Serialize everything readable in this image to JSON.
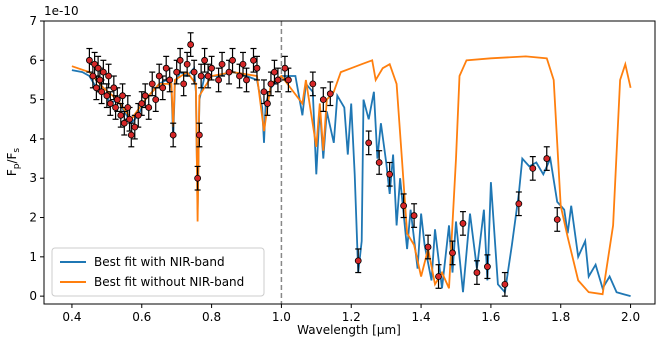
{
  "chart_data": {
    "type": "line",
    "x_label": "Wavelength [μm]",
    "y_label_parts": [
      "F",
      "p",
      "/F",
      "s"
    ],
    "y_offset_label": "1e-10",
    "xlim": [
      0.32,
      2.07
    ],
    "ylim": [
      -0.2,
      7
    ],
    "xticks": [
      0.4,
      0.6,
      0.8,
      {
        "value": 1.0,
        "label": "1.0"
      },
      1.2,
      1.4,
      1.6,
      1.8,
      {
        "value": 2.0,
        "label": "2.0"
      }
    ],
    "yticks": [
      0,
      1,
      2,
      3,
      4,
      5,
      6,
      7
    ],
    "vline_x": 1.0,
    "legend": "lower left",
    "series": [
      {
        "type": "line",
        "name": "Best fit with NIR-band",
        "color": "#1f77b4",
        "x": [
          0.4,
          0.43,
          0.45,
          0.47,
          0.49,
          0.51,
          0.53,
          0.55,
          0.57,
          0.59,
          0.61,
          0.63,
          0.65,
          0.67,
          0.685,
          0.69,
          0.695,
          0.71,
          0.73,
          0.75,
          0.755,
          0.76,
          0.765,
          0.78,
          0.82,
          0.86,
          0.9,
          0.93,
          0.945,
          0.95,
          0.955,
          0.97,
          1.0,
          1.04,
          1.06,
          1.07,
          1.09,
          1.1,
          1.11,
          1.12,
          1.13,
          1.15,
          1.16,
          1.18,
          1.19,
          1.2,
          1.21,
          1.22,
          1.23,
          1.235,
          1.25,
          1.265,
          1.275,
          1.285,
          1.3,
          1.31,
          1.32,
          1.33,
          1.34,
          1.36,
          1.37,
          1.39,
          1.4,
          1.41,
          1.43,
          1.44,
          1.46,
          1.48,
          1.49,
          1.5,
          1.52,
          1.54,
          1.56,
          1.58,
          1.59,
          1.6,
          1.62,
          1.64,
          1.66,
          1.68,
          1.69,
          1.71,
          1.73,
          1.75,
          1.77,
          1.79,
          1.81,
          1.82,
          1.83,
          1.85,
          1.87,
          1.88,
          1.9,
          1.92,
          1.94,
          1.96,
          1.98,
          2.0
        ],
        "values": [
          5.75,
          5.7,
          5.6,
          5.3,
          5.2,
          4.9,
          5.0,
          4.7,
          4.4,
          4.6,
          5.0,
          5.2,
          5.4,
          5.5,
          5.3,
          4.0,
          5.4,
          5.7,
          5.6,
          5.8,
          5.2,
          2.2,
          5.0,
          5.6,
          5.6,
          5.7,
          5.6,
          5.5,
          4.8,
          3.9,
          4.9,
          5.3,
          5.6,
          5.6,
          4.6,
          5.4,
          5.2,
          3.1,
          4.8,
          3.5,
          4.7,
          3.9,
          5.1,
          4.8,
          3.6,
          4.9,
          3.1,
          0.6,
          1.4,
          5.0,
          4.5,
          5.2,
          3.5,
          4.4,
          3.4,
          2.6,
          3.6,
          1.8,
          3.0,
          1.2,
          2.2,
          0.7,
          2.1,
          1.3,
          0.4,
          1.7,
          0.2,
          1.8,
          0.6,
          1.9,
          0.1,
          2.1,
          0.7,
          2.2,
          0.4,
          2.9,
          0.3,
          0.1,
          1.3,
          2.6,
          3.5,
          3.3,
          3.4,
          3.1,
          3.5,
          2.4,
          2.2,
          1.6,
          2.3,
          1.0,
          1.4,
          0.5,
          0.8,
          0.2,
          0.5,
          0.1,
          0.05,
          0.0
        ]
      },
      {
        "type": "line",
        "name": "Best fit without NIR-band",
        "color": "#ff7f0e",
        "x": [
          0.4,
          0.45,
          0.49,
          0.53,
          0.57,
          0.61,
          0.65,
          0.685,
          0.69,
          0.695,
          0.73,
          0.755,
          0.76,
          0.765,
          0.8,
          0.86,
          0.93,
          0.95,
          0.97,
          1.0,
          1.06,
          1.07,
          1.1,
          1.11,
          1.12,
          1.13,
          1.15,
          1.17,
          1.2,
          1.23,
          1.26,
          1.27,
          1.29,
          1.31,
          1.33,
          1.345,
          1.36,
          1.38,
          1.4,
          1.42,
          1.44,
          1.46,
          1.48,
          1.5,
          1.51,
          1.53,
          1.6,
          1.7,
          1.76,
          1.78,
          1.8,
          1.82,
          1.85,
          1.88,
          1.92,
          1.95,
          1.97,
          1.985,
          2.0
        ],
        "values": [
          5.85,
          5.7,
          5.3,
          5.0,
          4.5,
          5.0,
          5.4,
          5.4,
          4.3,
          5.5,
          5.7,
          5.4,
          1.9,
          5.1,
          5.6,
          5.7,
          5.6,
          4.2,
          5.4,
          5.6,
          4.9,
          5.5,
          3.8,
          4.9,
          3.7,
          5.0,
          5.2,
          5.7,
          5.8,
          5.9,
          6.0,
          5.5,
          5.8,
          5.9,
          5.4,
          3.5,
          1.6,
          1.3,
          0.5,
          1.2,
          0.3,
          0.6,
          0.2,
          3.5,
          5.6,
          6.0,
          6.05,
          6.1,
          6.05,
          5.5,
          2.3,
          1.5,
          0.4,
          0.1,
          0.05,
          1.8,
          5.5,
          5.9,
          5.3
        ]
      },
      {
        "type": "scatter",
        "color": "#d62728",
        "x": [
          0.45,
          0.46,
          0.465,
          0.47,
          0.475,
          0.48,
          0.485,
          0.49,
          0.5,
          0.505,
          0.51,
          0.52,
          0.525,
          0.53,
          0.54,
          0.545,
          0.55,
          0.56,
          0.565,
          0.57,
          0.58,
          0.59,
          0.6,
          0.61,
          0.62,
          0.63,
          0.64,
          0.65,
          0.66,
          0.67,
          0.68,
          0.69,
          0.7,
          0.71,
          0.72,
          0.73,
          0.74,
          0.75,
          0.76,
          0.765,
          0.77,
          0.78,
          0.79,
          0.8,
          0.82,
          0.83,
          0.85,
          0.86,
          0.88,
          0.89,
          0.9,
          0.92,
          0.93,
          0.95,
          0.96,
          0.97,
          0.98,
          0.99,
          1.01,
          1.02,
          1.09,
          1.12,
          1.14,
          1.22,
          1.25,
          1.28,
          1.31,
          1.35,
          1.38,
          1.42,
          1.45,
          1.49,
          1.52,
          1.56,
          1.59,
          1.64,
          1.68,
          1.72,
          1.76,
          1.79
        ],
        "values": [
          6.0,
          5.6,
          5.9,
          5.3,
          5.8,
          5.5,
          5.2,
          5.7,
          5.1,
          5.6,
          4.9,
          5.3,
          4.8,
          5.0,
          4.6,
          5.1,
          4.4,
          4.8,
          4.5,
          4.1,
          4.3,
          4.6,
          4.9,
          5.1,
          4.8,
          5.4,
          5.0,
          5.6,
          5.3,
          5.8,
          5.5,
          4.1,
          5.7,
          6.0,
          5.4,
          5.9,
          6.4,
          5.7,
          3.0,
          4.1,
          5.6,
          6.0,
          5.6,
          5.8,
          5.5,
          5.9,
          5.7,
          6.0,
          5.6,
          5.9,
          5.5,
          6.0,
          5.8,
          5.2,
          4.9,
          5.4,
          5.7,
          5.5,
          5.8,
          5.5,
          5.4,
          5.0,
          5.15,
          0.9,
          3.9,
          3.4,
          3.1,
          2.3,
          2.05,
          1.25,
          0.5,
          1.1,
          1.85,
          0.6,
          0.75,
          0.3,
          2.35,
          3.25,
          3.5,
          1.95
        ],
        "errors": [
          0.3,
          0.3,
          0.3,
          0.3,
          0.3,
          0.3,
          0.3,
          0.3,
          0.3,
          0.3,
          0.3,
          0.3,
          0.3,
          0.3,
          0.3,
          0.3,
          0.3,
          0.3,
          0.3,
          0.3,
          0.3,
          0.3,
          0.3,
          0.3,
          0.3,
          0.3,
          0.3,
          0.3,
          0.3,
          0.3,
          0.3,
          0.3,
          0.3,
          0.3,
          0.3,
          0.3,
          0.3,
          0.3,
          0.3,
          0.3,
          0.3,
          0.3,
          0.3,
          0.3,
          0.3,
          0.3,
          0.3,
          0.3,
          0.3,
          0.3,
          0.3,
          0.3,
          0.3,
          0.3,
          0.3,
          0.3,
          0.3,
          0.3,
          0.3,
          0.3,
          0.3,
          0.3,
          0.3,
          0.3,
          0.3,
          0.3,
          0.3,
          0.3,
          0.3,
          0.3,
          0.3,
          0.3,
          0.3,
          0.3,
          0.3,
          0.3,
          0.3,
          0.3,
          0.3,
          0.3
        ]
      }
    ]
  }
}
